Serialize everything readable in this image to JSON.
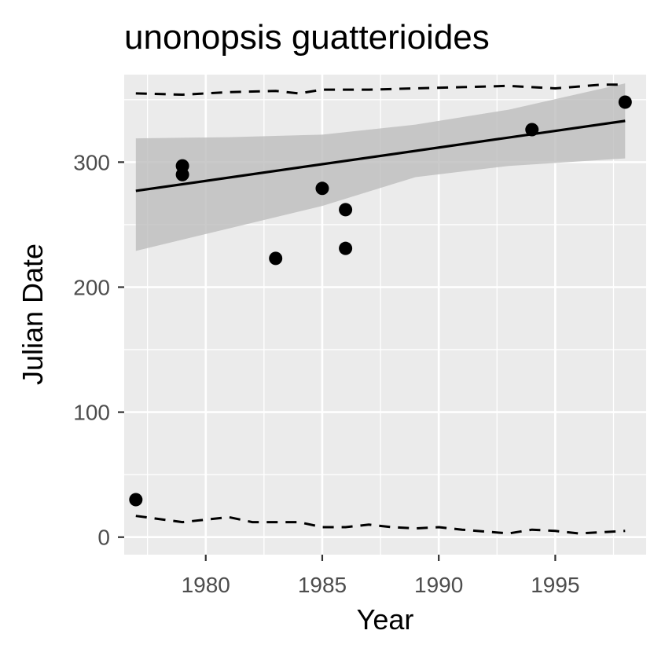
{
  "chart_data": {
    "type": "scatter",
    "title": "unonopsis guatterioides",
    "xlabel": "Year",
    "ylabel": "Julian Date",
    "xlim": [
      1976.5,
      1998.9
    ],
    "ylim": [
      -14,
      370
    ],
    "x_ticks": [
      1980,
      1985,
      1990,
      1995
    ],
    "y_ticks": [
      0,
      100,
      200,
      300
    ],
    "grid": true,
    "legend": "none",
    "colors": {
      "panel": "#ebebeb",
      "grid": "#ffffff",
      "points": "#000000",
      "ribbon": "#bdbdbd",
      "tick_text": "#4d4d4d"
    },
    "points": [
      {
        "x": 1977,
        "y": 30
      },
      {
        "x": 1979,
        "y": 290
      },
      {
        "x": 1979,
        "y": 297
      },
      {
        "x": 1983,
        "y": 223
      },
      {
        "x": 1985,
        "y": 279
      },
      {
        "x": 1986,
        "y": 262
      },
      {
        "x": 1986,
        "y": 231
      },
      {
        "x": 1994,
        "y": 326
      },
      {
        "x": 1998,
        "y": 348
      }
    ],
    "trend_line": {
      "x": [
        1977,
        1998
      ],
      "y": [
        277,
        333
      ]
    },
    "confidence_band": {
      "x": [
        1977,
        1981,
        1985,
        1989,
        1993,
        1998
      ],
      "lower": [
        229,
        247,
        265,
        288,
        297,
        303
      ],
      "upper": [
        319,
        320,
        322,
        330,
        342,
        363
      ]
    },
    "upper_dashed": {
      "x": [
        1977,
        1979,
        1981,
        1983,
        1984,
        1985,
        1987,
        1989,
        1991,
        1993,
        1995,
        1997,
        1998
      ],
      "y": [
        355,
        354,
        356,
        357,
        355,
        358,
        358,
        359,
        360,
        361,
        359,
        362,
        362
      ]
    },
    "lower_dashed": {
      "x": [
        1977,
        1979,
        1981,
        1982,
        1984,
        1985,
        1986,
        1987,
        1988,
        1989,
        1990,
        1991,
        1993,
        1994,
        1995,
        1996,
        1997,
        1998
      ],
      "y": [
        17,
        12,
        16,
        12,
        12,
        8,
        8,
        10,
        8,
        7,
        8,
        6,
        3,
        6,
        5,
        3,
        4,
        5
      ]
    }
  }
}
